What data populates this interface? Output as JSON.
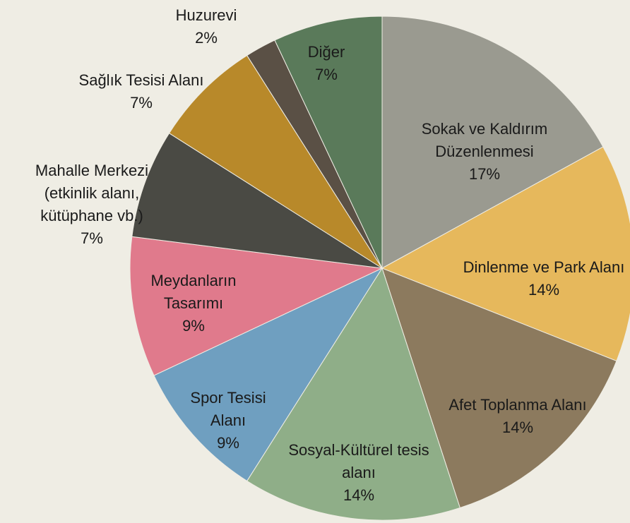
{
  "chart_data": {
    "type": "pie",
    "categories": [
      "Sokak ve Kaldırım Düzenlenmesi",
      "Dinlenme ve Park Alanı",
      "Afet Toplanma Alanı",
      "Sosyal-Kültürel tesis alanı",
      "Spor Tesisi Alanı",
      "Meydanların Tasarımı",
      "Mahalle Merkezi (etkinlik alanı, kütüphane vb.)",
      "Sağlık Tesisi Alanı",
      "Huzurevi",
      "Diğer"
    ],
    "values": [
      17,
      14,
      14,
      14,
      9,
      9,
      7,
      7,
      2,
      7
    ],
    "value_labels": [
      "17%",
      "14%",
      "14%",
      "14%",
      "9%",
      "9%",
      "7%",
      "7%",
      "2%",
      "7%"
    ],
    "colors": [
      "#9a9a90",
      "#e6b85c",
      "#8c7a5e",
      "#8fae88",
      "#6f9fc0",
      "#e07a8c",
      "#4a4a44",
      "#b8892a",
      "#5a5045",
      "#5a7a5a"
    ]
  }
}
